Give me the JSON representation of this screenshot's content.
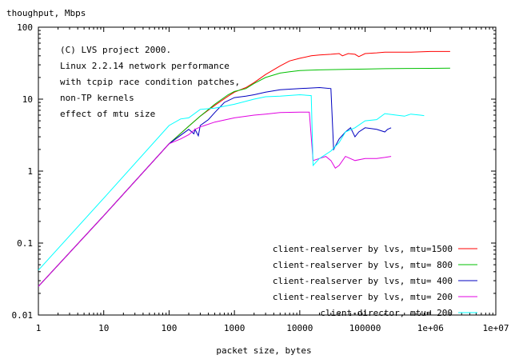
{
  "chart_data": {
    "type": "line",
    "title": "",
    "ylabel": "thoughput, Mbps",
    "xlabel": "packet size, bytes",
    "xscale": "log",
    "yscale": "log",
    "xlim": [
      1,
      10000000
    ],
    "ylim": [
      0.01,
      100
    ],
    "grid": false,
    "legend_position": "bottom-right",
    "x_ticks": [
      {
        "value": 1,
        "label": "1"
      },
      {
        "value": 10,
        "label": "10"
      },
      {
        "value": 100,
        "label": "100"
      },
      {
        "value": 1000,
        "label": "1000"
      },
      {
        "value": 10000,
        "label": "10000"
      },
      {
        "value": 100000,
        "label": "100000"
      },
      {
        "value": 1000000,
        "label": "1e+06"
      },
      {
        "value": 10000000,
        "label": "1e+07"
      }
    ],
    "y_ticks": [
      {
        "value": 0.01,
        "label": "0.01"
      },
      {
        "value": 0.1,
        "label": "0.1"
      },
      {
        "value": 1,
        "label": "1"
      },
      {
        "value": 10,
        "label": "10"
      },
      {
        "value": 100,
        "label": "100"
      }
    ],
    "annotation": [
      "(C) LVS project 2000.",
      "Linux 2.2.14 network performance",
      "with tcpip race condition patches,",
      "non-TP kernels",
      "effect of mtu size"
    ],
    "series": [
      {
        "name": "client-realserver by lvs, mtu=1500",
        "color": "#ff0000",
        "points": [
          [
            1,
            0.025
          ],
          [
            10,
            0.24
          ],
          [
            100,
            2.4
          ],
          [
            200,
            4.2
          ],
          [
            300,
            5.8
          ],
          [
            500,
            8.2
          ],
          [
            800,
            11
          ],
          [
            1000,
            12.5
          ],
          [
            1500,
            14.5
          ],
          [
            2000,
            17
          ],
          [
            3000,
            22
          ],
          [
            5000,
            29
          ],
          [
            7000,
            34
          ],
          [
            10000,
            37
          ],
          [
            15000,
            40
          ],
          [
            20000,
            41
          ],
          [
            30000,
            42
          ],
          [
            40000,
            43
          ],
          [
            45000,
            40
          ],
          [
            55000,
            43
          ],
          [
            70000,
            42
          ],
          [
            80000,
            39
          ],
          [
            100000,
            43
          ],
          [
            150000,
            44
          ],
          [
            200000,
            45
          ],
          [
            500000,
            45
          ],
          [
            1000000,
            46
          ],
          [
            2000000,
            46
          ]
        ]
      },
      {
        "name": "client-realserver by lvs, mtu= 800",
        "color": "#00c000",
        "points": [
          [
            1,
            0.025
          ],
          [
            10,
            0.24
          ],
          [
            100,
            2.4
          ],
          [
            200,
            4.2
          ],
          [
            300,
            5.8
          ],
          [
            500,
            8.5
          ],
          [
            800,
            11.5
          ],
          [
            1000,
            12.8
          ],
          [
            1500,
            14
          ],
          [
            2000,
            16.5
          ],
          [
            3000,
            20
          ],
          [
            5000,
            23
          ],
          [
            7000,
            24
          ],
          [
            10000,
            25
          ],
          [
            20000,
            25.5
          ],
          [
            50000,
            26
          ],
          [
            100000,
            26.2
          ],
          [
            200000,
            26.5
          ],
          [
            500000,
            26.7
          ],
          [
            1000000,
            26.8
          ],
          [
            2000000,
            27
          ]
        ]
      },
      {
        "name": "client-realserver by lvs, mtu= 400",
        "color": "#0000c0",
        "points": [
          [
            1,
            0.025
          ],
          [
            10,
            0.24
          ],
          [
            100,
            2.4
          ],
          [
            200,
            3.8
          ],
          [
            240,
            3.3
          ],
          [
            250,
            3.8
          ],
          [
            280,
            3.1
          ],
          [
            300,
            4.3
          ],
          [
            400,
            5.2
          ],
          [
            500,
            6.5
          ],
          [
            700,
            9
          ],
          [
            1000,
            10.5
          ],
          [
            1500,
            11
          ],
          [
            2000,
            11.5
          ],
          [
            3000,
            12.5
          ],
          [
            5000,
            13.5
          ],
          [
            10000,
            14
          ],
          [
            20000,
            14.5
          ],
          [
            30000,
            14
          ],
          [
            33000,
            2
          ],
          [
            40000,
            2.8
          ],
          [
            50000,
            3.5
          ],
          [
            60000,
            4
          ],
          [
            70000,
            3
          ],
          [
            80000,
            3.5
          ],
          [
            100000,
            4
          ],
          [
            150000,
            3.8
          ],
          [
            200000,
            3.5
          ],
          [
            220000,
            3.8
          ],
          [
            250000,
            4
          ]
        ]
      },
      {
        "name": "client-realserver by lvs, mtu= 200",
        "color": "#e000e0",
        "points": [
          [
            1,
            0.025
          ],
          [
            10,
            0.24
          ],
          [
            100,
            2.4
          ],
          [
            150,
            2.8
          ],
          [
            200,
            3.2
          ],
          [
            250,
            3.8
          ],
          [
            300,
            4.1
          ],
          [
            500,
            4.8
          ],
          [
            1000,
            5.5
          ],
          [
            2000,
            6
          ],
          [
            3000,
            6.2
          ],
          [
            5000,
            6.5
          ],
          [
            10000,
            6.6
          ],
          [
            14000,
            6.6
          ],
          [
            16000,
            1.4
          ],
          [
            20000,
            1.5
          ],
          [
            25000,
            1.6
          ],
          [
            30000,
            1.4
          ],
          [
            35000,
            1.1
          ],
          [
            40000,
            1.2
          ],
          [
            50000,
            1.6
          ],
          [
            70000,
            1.4
          ],
          [
            100000,
            1.5
          ],
          [
            150000,
            1.5
          ],
          [
            200000,
            1.55
          ],
          [
            250000,
            1.6
          ]
        ]
      },
      {
        "name": "client-director, mtu= 200",
        "color": "#00ffff",
        "points": [
          [
            1,
            0.042
          ],
          [
            10,
            0.42
          ],
          [
            100,
            4.3
          ],
          [
            150,
            5.3
          ],
          [
            200,
            5.5
          ],
          [
            300,
            7.2
          ],
          [
            500,
            7.5
          ],
          [
            1000,
            8.5
          ],
          [
            2000,
            10
          ],
          [
            3000,
            10.8
          ],
          [
            5000,
            11
          ],
          [
            10000,
            11.5
          ],
          [
            15000,
            11.2
          ],
          [
            16000,
            1.2
          ],
          [
            20000,
            1.5
          ],
          [
            30000,
            1.9
          ],
          [
            40000,
            2.5
          ],
          [
            50000,
            3.5
          ],
          [
            70000,
            4
          ],
          [
            100000,
            5
          ],
          [
            150000,
            5.2
          ],
          [
            200000,
            6.3
          ],
          [
            300000,
            6
          ],
          [
            400000,
            5.8
          ],
          [
            500000,
            6.2
          ],
          [
            700000,
            6
          ],
          [
            800000,
            5.9
          ]
        ]
      }
    ]
  }
}
